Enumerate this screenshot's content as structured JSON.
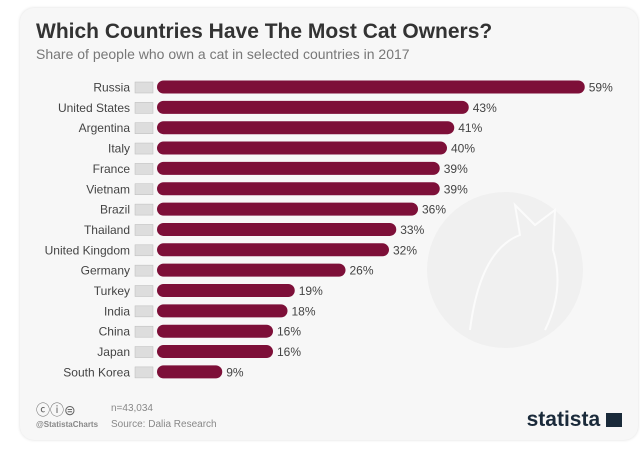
{
  "chart_data": {
    "type": "bar",
    "orientation": "horizontal",
    "title": "Which Countries Have The Most Cat Owners?",
    "subtitle": "Share of people who own a cat in selected countries in 2017",
    "categories": [
      "Russia",
      "United States",
      "Argentina",
      "Italy",
      "France",
      "Vietnam",
      "Brazil",
      "Thailand",
      "United Kingdom",
      "Germany",
      "Turkey",
      "India",
      "China",
      "Japan",
      "South Korea"
    ],
    "values": [
      59,
      43,
      41,
      40,
      39,
      39,
      36,
      33,
      32,
      26,
      19,
      18,
      16,
      16,
      9
    ],
    "value_suffix": "%",
    "bar_color": "#7d0f38",
    "grid": false
  },
  "footer": {
    "n": "n=43,034",
    "handle": "@StatistaCharts",
    "source": "Source: Dalia Research",
    "brand": "statista"
  }
}
